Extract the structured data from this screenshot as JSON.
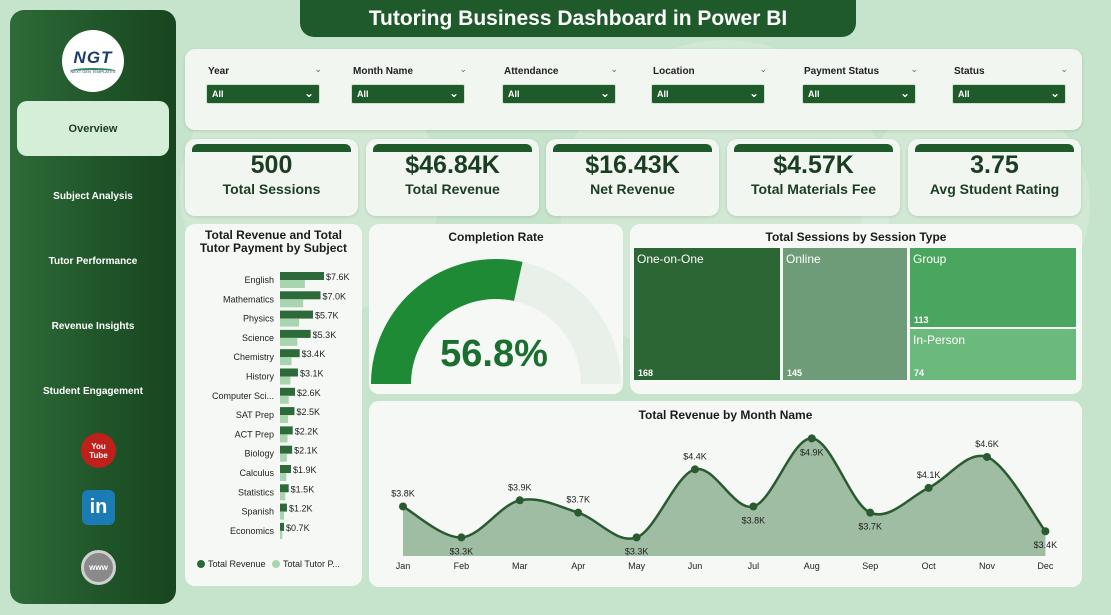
{
  "title": "Tutoring Business Dashboard in Power BI",
  "logo": {
    "text": "NGT",
    "sub": "NEXT GEN TEMPLATES"
  },
  "nav": [
    {
      "label": "Overview"
    },
    {
      "label": "Subject Analysis"
    },
    {
      "label": "Tutor Performance"
    },
    {
      "label": "Revenue Insights"
    },
    {
      "label": "Student Engagement"
    }
  ],
  "social": [
    {
      "name": "youtube-icon",
      "text": "You Tube"
    },
    {
      "name": "linkedin-icon",
      "text": "in"
    },
    {
      "name": "website-icon",
      "text": "www"
    }
  ],
  "filters": [
    {
      "label": "Year",
      "value": "All"
    },
    {
      "label": "Month Name",
      "value": "All"
    },
    {
      "label": "Attendance",
      "value": "All"
    },
    {
      "label": "Location",
      "value": "All"
    },
    {
      "label": "Payment Status",
      "value": "All"
    },
    {
      "label": "Status",
      "value": "All"
    }
  ],
  "kpis": [
    {
      "value": "500",
      "label": "Total Sessions"
    },
    {
      "value": "$46.84K",
      "label": "Total Revenue"
    },
    {
      "value": "$16.43K",
      "label": "Net Revenue"
    },
    {
      "value": "$4.57K",
      "label": "Total Materials Fee"
    },
    {
      "value": "3.75",
      "label": "Avg Student Rating"
    }
  ],
  "colors": {
    "dark_green": "#1f5a2a",
    "bar_primary": "#2d6a39",
    "bar_secondary": "#a8d5b0",
    "gauge": "#1e8a35",
    "area_fill": "#8fb394",
    "line": "#2a5a30"
  },
  "chart_data": [
    {
      "type": "bar",
      "orientation": "horizontal",
      "title_line1": "Total Revenue and Total",
      "title_line2": "Tutor Payment by Subject",
      "categories": [
        "English",
        "Mathematics",
        "Physics",
        "Science",
        "Chemistry",
        "History",
        "Computer Sci...",
        "SAT Prep",
        "ACT Prep",
        "Biology",
        "Calculus",
        "Statistics",
        "Spanish",
        "Economics"
      ],
      "series": [
        {
          "name": "Total Revenue",
          "values": [
            7.6,
            7.0,
            5.7,
            5.3,
            3.4,
            3.1,
            2.6,
            2.5,
            2.2,
            2.1,
            1.9,
            1.5,
            1.2,
            0.7
          ],
          "labels": [
            "$7.6K",
            "$7.0K",
            "$5.7K",
            "$5.3K",
            "$3.4K",
            "$3.1K",
            "$2.6K",
            "$2.5K",
            "$2.2K",
            "$2.1K",
            "$1.9K",
            "$1.5K",
            "$1.2K",
            "$0.7K"
          ]
        },
        {
          "name": "Total Tutor P...",
          "values": [
            4.3,
            4.0,
            3.3,
            3.0,
            2.0,
            1.8,
            1.5,
            1.4,
            1.3,
            1.2,
            1.1,
            0.9,
            0.7,
            0.4
          ]
        }
      ]
    },
    {
      "type": "gauge",
      "title": "Completion Rate",
      "value": 56.8,
      "label": "56.8%",
      "min": 0,
      "max": 100
    },
    {
      "type": "treemap",
      "title": "Total Sessions by Session Type",
      "items": [
        {
          "name": "One-on-One",
          "value": 168,
          "color": "#2c6634"
        },
        {
          "name": "Online",
          "value": 145,
          "color": "#6e9c78"
        },
        {
          "name": "Group",
          "value": 113,
          "color": "#4aa55e"
        },
        {
          "name": "In-Person",
          "value": 74,
          "color": "#6bb97c"
        }
      ]
    },
    {
      "type": "area",
      "title": "Total Revenue by Month Name",
      "categories": [
        "Jan",
        "Feb",
        "Mar",
        "Apr",
        "May",
        "Jun",
        "Jul",
        "Aug",
        "Sep",
        "Oct",
        "Nov",
        "Dec"
      ],
      "values": [
        3.8,
        3.3,
        3.9,
        3.7,
        3.3,
        4.4,
        3.8,
        4.9,
        3.7,
        4.1,
        4.6,
        3.4
      ],
      "labels": [
        "$3.8K",
        "$3.3K",
        "$3.9K",
        "$3.7K",
        "$3.3K",
        "$4.4K",
        "$3.8K",
        "$4.9K",
        "$3.7K",
        "$4.1K",
        "$4.6K",
        "$3.4K"
      ]
    }
  ]
}
